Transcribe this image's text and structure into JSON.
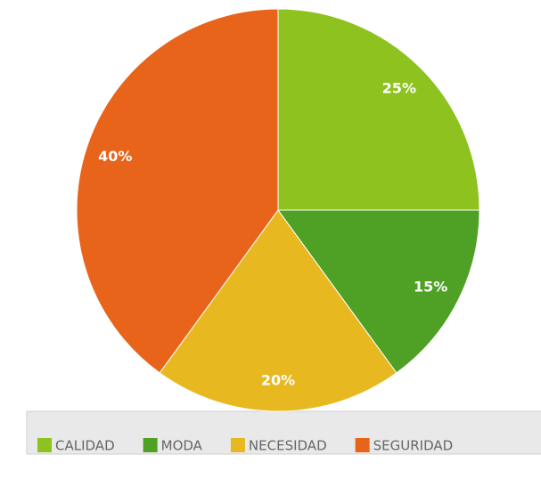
{
  "chart_data": {
    "type": "pie",
    "categories": [
      "CALIDAD",
      "MODA",
      "NECESIDAD",
      "SEGURIDAD"
    ],
    "values": [
      25,
      15,
      20,
      40
    ],
    "value_labels": [
      "25%",
      "15%",
      "20%",
      "40%"
    ],
    "colors": [
      "#8dc21f",
      "#4fa125",
      "#e8b820",
      "#e8641a"
    ],
    "legend": "bottom"
  }
}
